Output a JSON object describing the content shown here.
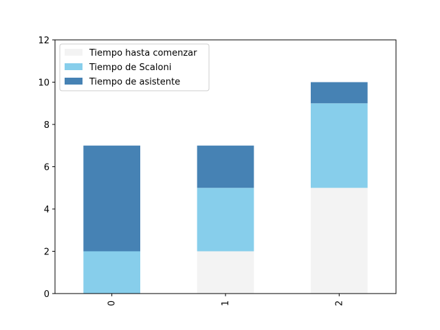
{
  "chart_data": {
    "type": "bar",
    "stacked": true,
    "categories": [
      "0",
      "1",
      "2"
    ],
    "series": [
      {
        "name": "Tiempo hasta comenzar",
        "values": [
          0,
          2,
          5
        ],
        "color": "#f3f3f3"
      },
      {
        "name": "Tiempo de Scaloni",
        "values": [
          2,
          3,
          4
        ],
        "color": "#87ceeb"
      },
      {
        "name": "Tiempo de asistente",
        "values": [
          5,
          2,
          1
        ],
        "color": "#4682b4"
      }
    ],
    "ylim": [
      0,
      12
    ],
    "yticks": [
      0,
      2,
      4,
      6,
      8,
      10,
      12
    ],
    "legend_position": "top-left",
    "grid": false,
    "title": "",
    "xlabel": "",
    "ylabel": ""
  }
}
